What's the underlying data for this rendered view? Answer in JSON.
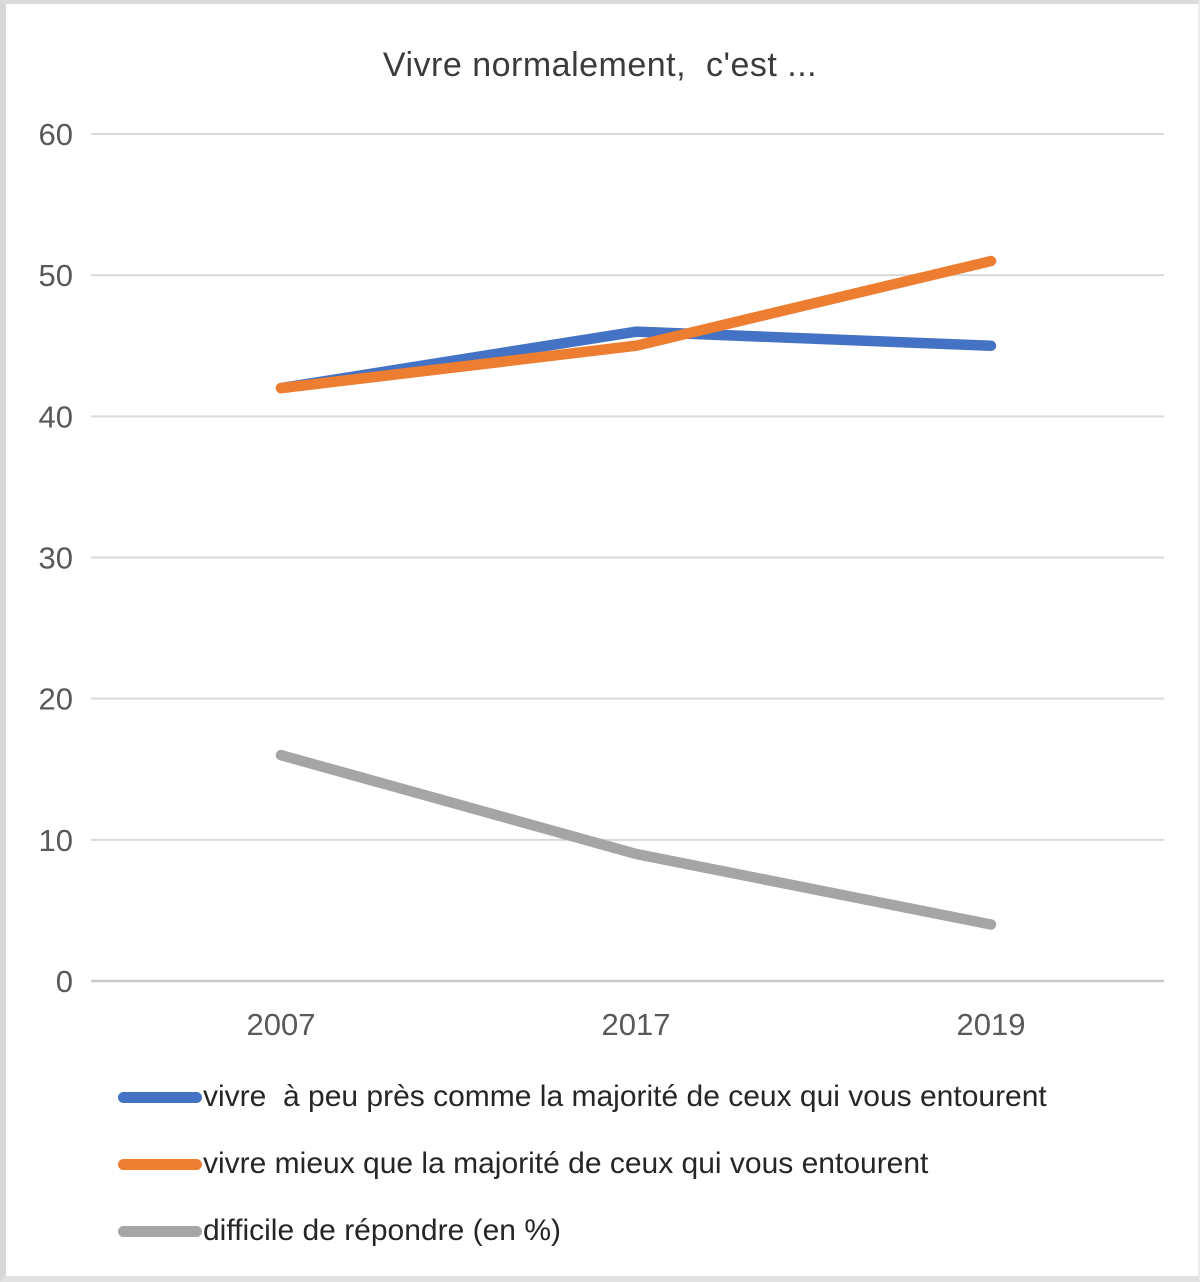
{
  "chart_data": {
    "type": "line",
    "title": "Vivre normalement,  c'est ...",
    "categories": [
      "2007",
      "2017",
      "2019"
    ],
    "series": [
      {
        "name": "vivre  à peu près comme la majorité de ceux qui vous entourent",
        "color": "#4472C4",
        "values": [
          42,
          46,
          45
        ]
      },
      {
        "name": "vivre mieux que la majorité de ceux qui vous entourent",
        "color": "#ED7D31",
        "values": [
          42,
          45,
          51
        ]
      },
      {
        "name": "difficile de répondre (en %)",
        "color": "#A5A5A5",
        "values": [
          16,
          9,
          4
        ]
      }
    ],
    "xlabel": "",
    "ylabel": "",
    "ylim": [
      0,
      60
    ],
    "yticks": [
      0,
      10,
      20,
      30,
      40,
      50,
      60
    ],
    "grid": "horizontal",
    "legend_position": "bottom-left",
    "gridline_color": "#d9d9d9",
    "axis_line_color": "#c9c9c9",
    "axis_label_color": "#595959",
    "title_color": "#3b3b3b",
    "line_width": 10.5
  }
}
